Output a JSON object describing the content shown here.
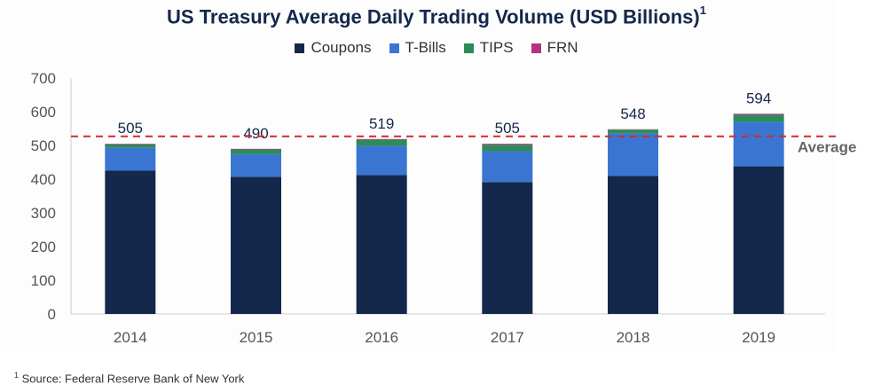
{
  "title": "US Treasury Average Daily Trading Volume (USD Billions)",
  "title_footnote_mark": "1",
  "source_mark": "1",
  "source": "Source: Federal Reserve Bank of New York",
  "average_label": "Average",
  "colors": {
    "Coupons": "#14284b",
    "T-Bills": "#3a76d1",
    "TIPS": "#2b8c5a",
    "FRN": "#b2357c",
    "average": "#d42a2a"
  },
  "chart_data": {
    "type": "bar",
    "stacked": true,
    "title": "US Treasury Average Daily Trading Volume (USD Billions)",
    "categories": [
      "2014",
      "2015",
      "2016",
      "2017",
      "2018",
      "2019"
    ],
    "series": [
      {
        "name": "Coupons",
        "values": [
          425,
          407,
          412,
          391,
          410,
          438
        ]
      },
      {
        "name": "T-Bills",
        "values": [
          68,
          67,
          87,
          92,
          125,
          132
        ]
      },
      {
        "name": "TIPS",
        "values": [
          10,
          14,
          18,
          19,
          12,
          21
        ]
      },
      {
        "name": "FRN",
        "values": [
          2,
          2,
          2,
          3,
          1,
          3
        ]
      }
    ],
    "totals": [
      505,
      490,
      519,
      505,
      548,
      594
    ],
    "totals_labels": [
      "505",
      "490",
      "519",
      "505",
      "548",
      "594"
    ],
    "average": 527,
    "ylim": [
      0,
      700
    ],
    "yticks": [
      0,
      100,
      200,
      300,
      400,
      500,
      600,
      700
    ],
    "ytick_labels": [
      "0",
      "100",
      "200",
      "300",
      "400",
      "500",
      "600",
      "700"
    ],
    "legend_position": "top",
    "grid": false
  }
}
